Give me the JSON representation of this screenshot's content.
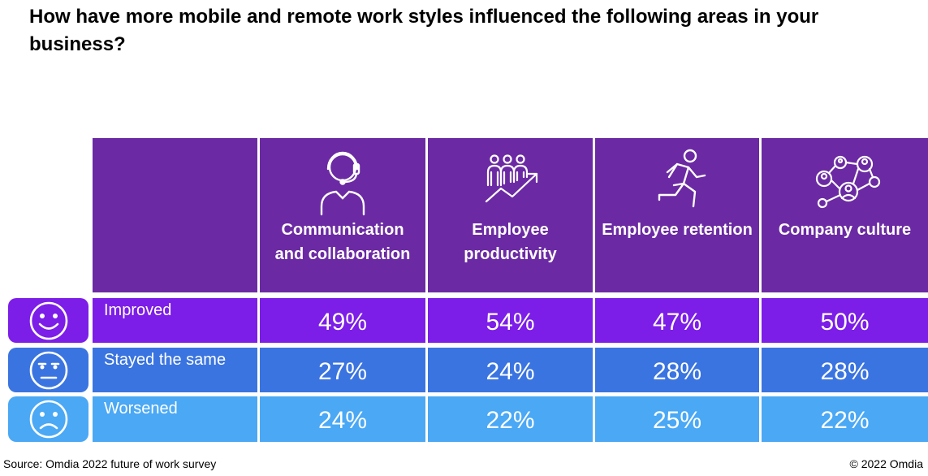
{
  "title": "How have more mobile and remote work styles influenced the following areas in your business?",
  "colors": {
    "header": "#6b2aa3",
    "improved": "#7c1de8",
    "same": "#3a74e0",
    "worsened": "#4aa8f5"
  },
  "chart_data": {
    "type": "table",
    "columns": [
      {
        "label": "Communication and collaboration",
        "icon": "headset-person-icon"
      },
      {
        "label": "Employee productivity",
        "icon": "growth-team-icon"
      },
      {
        "label": "Employee retention",
        "icon": "running-person-icon"
      },
      {
        "label": "Company culture",
        "icon": "people-network-icon"
      }
    ],
    "rows": [
      {
        "label": "Improved",
        "icon": "happy-face-icon",
        "values": [
          "49%",
          "54%",
          "47%",
          "50%"
        ]
      },
      {
        "label": "Stayed the same",
        "icon": "neutral-face-icon",
        "values": [
          "27%",
          "24%",
          "28%",
          "28%"
        ]
      },
      {
        "label": "Worsened",
        "icon": "sad-face-icon",
        "values": [
          "24%",
          "22%",
          "25%",
          "22%"
        ]
      }
    ]
  },
  "source": "Source: Omdia 2022 future of work survey",
  "copyright": "© 2022 Omdia"
}
